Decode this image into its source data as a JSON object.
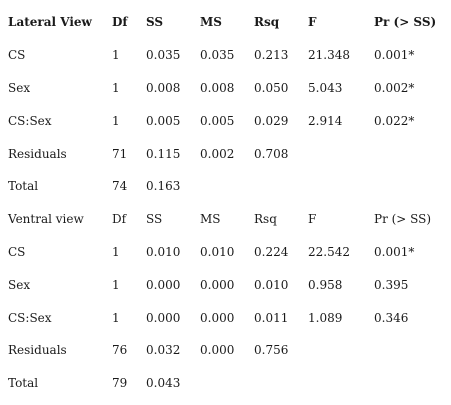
{
  "lateral": {
    "header": [
      "Lateral View",
      "Df",
      "SS",
      "MS",
      "Rsq",
      "F",
      "Pr (> SS)"
    ],
    "rows": [
      [
        "CS",
        "1",
        "0.035",
        "0.035",
        "0.213",
        "21.348",
        "0.001*"
      ],
      [
        "Sex",
        "1",
        "0.008",
        "0.008",
        "0.050",
        "5.043",
        "0.002*"
      ],
      [
        "CS:Sex",
        "1",
        "0.005",
        "0.005",
        "0.029",
        "2.914",
        "0.022*"
      ],
      [
        "Residuals",
        "71",
        "0.115",
        "0.002",
        "0.708",
        "",
        ""
      ],
      [
        "Total",
        "74",
        "0.163",
        "",
        "",
        "",
        ""
      ]
    ]
  },
  "ventral": {
    "header": [
      "Ventral view",
      "Df",
      "SS",
      "MS",
      "Rsq",
      "F",
      "Pr (> SS)"
    ],
    "rows": [
      [
        "CS",
        "1",
        "0.010",
        "0.010",
        "0.224",
        "22.542",
        "0.001*"
      ],
      [
        "Sex",
        "1",
        "0.000",
        "0.000",
        "0.010",
        "0.958",
        "0.395"
      ],
      [
        "CS:Sex",
        "1",
        "0.000",
        "0.000",
        "0.011",
        "1.089",
        "0.346"
      ],
      [
        "Residuals",
        "76",
        "0.032",
        "0.000",
        "0.756",
        "",
        ""
      ],
      [
        "Total",
        "79",
        "0.043",
        "",
        "",
        "",
        ""
      ]
    ]
  }
}
